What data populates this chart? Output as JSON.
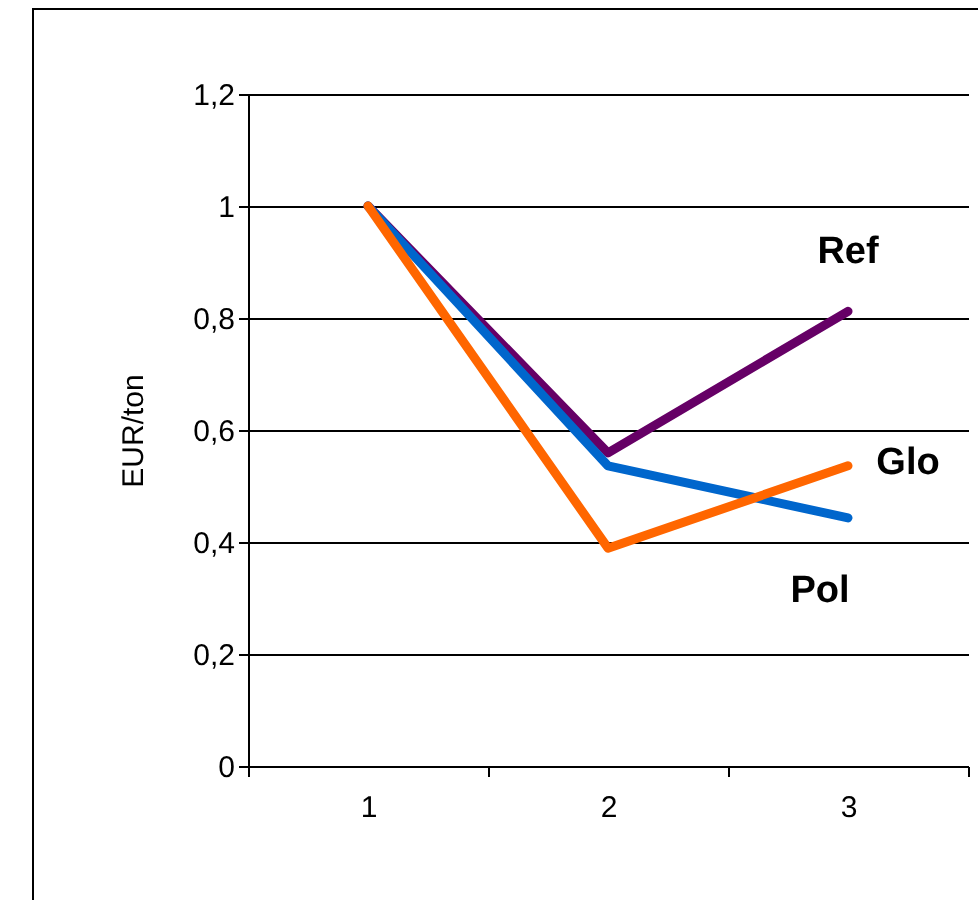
{
  "chart_data": {
    "type": "line",
    "ylabel": "EUR/ton",
    "categories": [
      "1",
      "2",
      "3"
    ],
    "series": [
      {
        "name": "Ref",
        "color": "#660066",
        "values": [
          1,
          0.559,
          0.812
        ]
      },
      {
        "name": "Pol",
        "color": "#0066cc",
        "values": [
          1,
          0.536,
          0.443
        ]
      },
      {
        "name": "Glo",
        "color": "#ff6600",
        "values": [
          1,
          0.389,
          0.536
        ]
      }
    ],
    "ylim": [
      0,
      1.2
    ],
    "yticks": [
      0,
      {
        "value": 0.2,
        "label": "0,2"
      },
      {
        "value": 0.4,
        "label": "0,4"
      },
      {
        "value": 0.6,
        "label": "0,6"
      },
      {
        "value": 0.8,
        "label": "0,8"
      },
      1,
      {
        "value": 1.2,
        "label": "1,2"
      }
    ],
    "grid": "y",
    "legend": false,
    "marker": "none",
    "line_style": "solid"
  }
}
